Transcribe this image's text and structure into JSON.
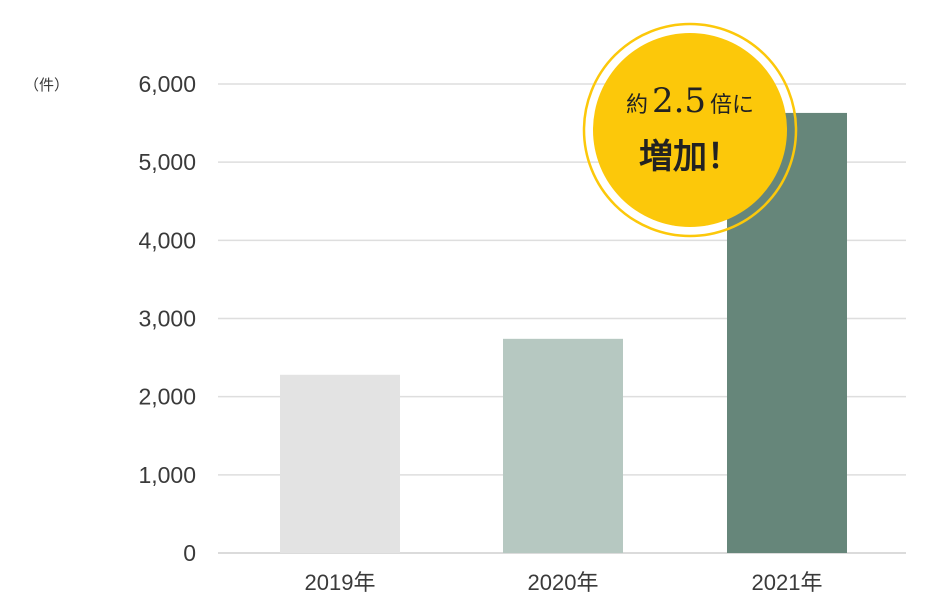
{
  "chart_data": {
    "type": "bar",
    "categories": [
      "2019年",
      "2020年",
      "2021年"
    ],
    "values": [
      2280,
      2740,
      5630
    ],
    "unit_label": "（件）",
    "ylim": [
      0,
      6000
    ],
    "y_ticks": [
      "0",
      "1,000",
      "2,000",
      "3,000",
      "4,000",
      "5,000",
      "6,000"
    ],
    "y_tick_values": [
      0,
      1000,
      2000,
      3000,
      4000,
      5000,
      6000
    ],
    "grid": true,
    "bar_colors": [
      "#e3e3e3",
      "#b6c8c1",
      "#66867a"
    ],
    "annotation": {
      "prefix": "約",
      "number": "2.5",
      "suffix": "倍に",
      "line2": "増加！",
      "color": "#fcc80a"
    }
  }
}
